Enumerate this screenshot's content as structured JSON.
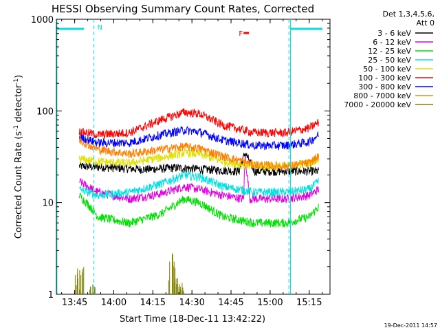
{
  "chart_data": {
    "type": "line",
    "title": "HESSI Observing Summary Count Rates, Corrected",
    "xlabel": "Start Time (18-Dec-11 13:42:22)",
    "ylabel_main": "Corrected Count Rate (s",
    "ylabel_sup1": "-1",
    "ylabel_mid": " detector",
    "ylabel_sup2": "-1",
    "ylabel_end": ")",
    "yscale": "log",
    "ylim": [
      1,
      1000
    ],
    "xlim_minutes": [
      13.633,
      15.383
    ],
    "x_ticks": [
      {
        "label": "13:45",
        "v": 13.75
      },
      {
        "label": "14:00",
        "v": 14.0
      },
      {
        "label": "14:15",
        "v": 14.25
      },
      {
        "label": "14:30",
        "v": 14.5
      },
      {
        "label": "14:45",
        "v": 14.75
      },
      {
        "label": "15:00",
        "v": 15.0
      },
      {
        "label": "15:15",
        "v": 15.25
      }
    ],
    "y_ticks": [
      {
        "label": "1",
        "v": 1
      },
      {
        "label": "10",
        "v": 10
      },
      {
        "label": "100",
        "v": 100
      },
      {
        "label": "1000",
        "v": 1000
      }
    ],
    "legend_header": [
      "Det 1,3,4,5,6,",
      "Att 0"
    ],
    "legend_position": "right",
    "night_flag_label": "N",
    "flare_flag_label": "F",
    "night_lines_hours": [
      13.872,
      15.12
    ],
    "night_bars": [
      [
        13.637,
        13.81
      ],
      [
        15.13,
        15.335
      ]
    ],
    "series": [
      {
        "name": "3 - 6 keV",
        "color": "#000000",
        "points": [
          [
            13.78,
            25
          ],
          [
            14.0,
            24
          ],
          [
            14.2,
            23
          ],
          [
            14.4,
            24
          ],
          [
            14.6,
            23
          ],
          [
            14.8,
            22
          ],
          [
            14.84,
            35
          ],
          [
            14.9,
            22
          ],
          [
            15.1,
            22
          ],
          [
            15.31,
            22
          ]
        ]
      },
      {
        "name": "6 - 12 keV",
        "color": "#e000e0",
        "points": [
          [
            13.78,
            17
          ],
          [
            13.9,
            13
          ],
          [
            14.1,
            11
          ],
          [
            14.3,
            12.5
          ],
          [
            14.45,
            15
          ],
          [
            14.55,
            14
          ],
          [
            14.7,
            12
          ],
          [
            14.83,
            11
          ],
          [
            14.84,
            32
          ],
          [
            14.87,
            11
          ],
          [
            15.1,
            11
          ],
          [
            15.25,
            12
          ],
          [
            15.31,
            14
          ]
        ]
      },
      {
        "name": "12 - 25 keV",
        "color": "#00e000",
        "points": [
          [
            13.78,
            12
          ],
          [
            13.85,
            9
          ],
          [
            13.9,
            7
          ],
          [
            14.1,
            6
          ],
          [
            14.3,
            7.5
          ],
          [
            14.45,
            11
          ],
          [
            14.55,
            10
          ],
          [
            14.7,
            7
          ],
          [
            14.9,
            6
          ],
          [
            15.1,
            6
          ],
          [
            15.25,
            7
          ],
          [
            15.31,
            9
          ]
        ]
      },
      {
        "name": "25 - 50 keV",
        "color": "#00e0e0",
        "points": [
          [
            13.78,
            14
          ],
          [
            13.9,
            12
          ],
          [
            14.1,
            13
          ],
          [
            14.3,
            16
          ],
          [
            14.45,
            20
          ],
          [
            14.55,
            19
          ],
          [
            14.7,
            15
          ],
          [
            14.9,
            13
          ],
          [
            15.1,
            13
          ],
          [
            15.25,
            14
          ],
          [
            15.31,
            17
          ]
        ]
      },
      {
        "name": "50 - 100 keV",
        "color": "#e0e000",
        "points": [
          [
            13.78,
            30
          ],
          [
            13.9,
            28
          ],
          [
            14.1,
            27
          ],
          [
            14.3,
            31
          ],
          [
            14.45,
            35
          ],
          [
            14.55,
            34
          ],
          [
            14.7,
            28
          ],
          [
            14.9,
            25
          ],
          [
            15.1,
            25
          ],
          [
            15.25,
            27
          ],
          [
            15.31,
            30
          ]
        ]
      },
      {
        "name": "100 - 300 keV",
        "color": "#ff0000",
        "points": [
          [
            13.78,
            60
          ],
          [
            13.9,
            55
          ],
          [
            14.1,
            58
          ],
          [
            14.3,
            80
          ],
          [
            14.45,
            97
          ],
          [
            14.55,
            93
          ],
          [
            14.7,
            70
          ],
          [
            14.9,
            58
          ],
          [
            15.1,
            58
          ],
          [
            15.25,
            65
          ],
          [
            15.31,
            75
          ]
        ]
      },
      {
        "name": "300 - 800 keV",
        "color": "#0000ff",
        "points": [
          [
            13.78,
            52
          ],
          [
            13.9,
            45
          ],
          [
            14.1,
            45
          ],
          [
            14.3,
            55
          ],
          [
            14.45,
            62
          ],
          [
            14.55,
            59
          ],
          [
            14.7,
            48
          ],
          [
            14.9,
            42
          ],
          [
            15.1,
            42
          ],
          [
            15.25,
            46
          ],
          [
            15.31,
            55
          ]
        ]
      },
      {
        "name": "800 - 7000 keV",
        "color": "#ff8000",
        "points": [
          [
            13.78,
            48
          ],
          [
            13.9,
            38
          ],
          [
            14.1,
            34
          ],
          [
            14.3,
            38
          ],
          [
            14.45,
            41
          ],
          [
            14.55,
            39
          ],
          [
            14.7,
            32
          ],
          [
            14.9,
            26
          ],
          [
            15.1,
            25
          ],
          [
            15.25,
            27
          ],
          [
            15.31,
            32
          ]
        ]
      },
      {
        "name": "7000 - 20000 keV",
        "color": "#808000",
        "points": [
          [
            13.78,
            2.2
          ],
          [
            13.86,
            1.3
          ],
          [
            14.38,
            2.8
          ],
          [
            14.42,
            1.4
          ]
        ]
      }
    ]
  },
  "footer_timestamp": "19-Dec-2011 14:57"
}
